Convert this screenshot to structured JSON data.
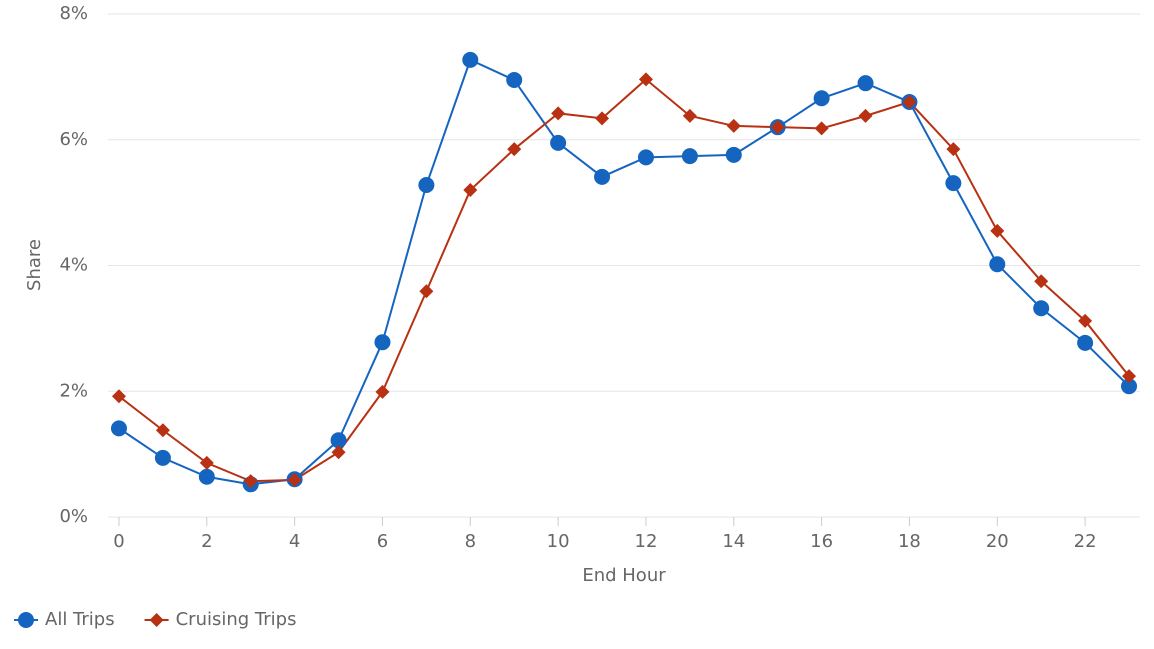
{
  "chart_data": {
    "type": "line",
    "x_label": "End Hour",
    "y_label": "Share",
    "x": [
      0,
      1,
      2,
      3,
      4,
      5,
      6,
      7,
      8,
      9,
      10,
      11,
      12,
      13,
      14,
      15,
      16,
      17,
      18,
      19,
      20,
      21,
      22,
      23
    ],
    "series": [
      {
        "name": "All Trips",
        "color": "#1565c0",
        "marker": "circle",
        "values": [
          1.41,
          0.94,
          0.64,
          0.52,
          0.6,
          1.22,
          2.78,
          5.28,
          7.27,
          6.95,
          5.95,
          5.41,
          5.72,
          5.74,
          5.76,
          6.2,
          6.66,
          6.9,
          6.6,
          5.31,
          4.02,
          3.32,
          2.77,
          2.08
        ]
      },
      {
        "name": "Cruising Trips",
        "color": "#b83112",
        "marker": "diamond",
        "values": [
          1.92,
          1.38,
          0.86,
          0.57,
          0.59,
          1.03,
          1.99,
          3.59,
          5.2,
          5.85,
          6.42,
          6.34,
          6.96,
          6.38,
          6.22,
          6.2,
          6.18,
          6.38,
          6.6,
          5.85,
          4.55,
          3.75,
          3.12,
          2.24
        ]
      }
    ],
    "xlim": [
      -0.25,
      23.25
    ],
    "xticks": [
      0,
      2,
      4,
      6,
      8,
      10,
      12,
      14,
      16,
      18,
      20,
      22
    ],
    "ylim": [
      0,
      8
    ],
    "yticks": [
      {
        "value": 0,
        "label": "0%"
      },
      {
        "value": 2,
        "label": "2%"
      },
      {
        "value": 4,
        "label": "4%"
      },
      {
        "value": 6,
        "label": "6%"
      },
      {
        "value": 8,
        "label": "8%"
      }
    ],
    "grid": true,
    "legend": "bottom-left"
  }
}
